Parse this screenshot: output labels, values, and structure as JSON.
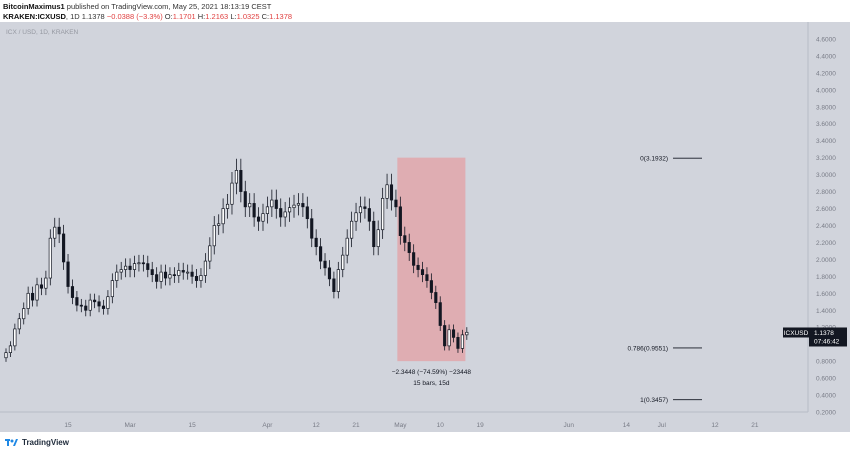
{
  "header": {
    "author": "BitcoinMaximus1",
    "published_text": "published on TradingView.com, May 25, 2021 18:13:19 CEST",
    "symbol": "KRAKEN:ICXUSD",
    "interval": "1D",
    "last": "1.1378",
    "change": "−0.0388 (−3.3%)",
    "o_label": "O:",
    "o_value": "1.1701",
    "h_label": "H:",
    "h_value": "1.2163",
    "l_label": "L:",
    "l_value": "1.0325",
    "c_label": "C:",
    "c_value": "1.1378"
  },
  "footer": {
    "brand": "TradingView"
  },
  "colors": {
    "background": "#d1d4dc",
    "candle_up": "#ffffff",
    "candle_down": "#131722",
    "range_box": "#e3a1a7",
    "price_label_bg": "#131722"
  },
  "chart_data": {
    "type": "candlestick",
    "title": "ICX / USD, 1D, KRAKEN",
    "ylim": [
      0.2,
      4.8
    ],
    "y_ticks": [
      "0.2000",
      "0.4000",
      "0.6000",
      "0.8000",
      "1.0000",
      "1.2000",
      "1.4000",
      "1.6000",
      "1.8000",
      "2.0000",
      "2.2000",
      "2.4000",
      "2.6000",
      "2.8000",
      "3.0000",
      "3.2000",
      "3.4000",
      "3.6000",
      "3.8000",
      "4.0000",
      "4.2000",
      "4.4000",
      "4.6000"
    ],
    "x_ticks": [
      "15",
      "Mar",
      "15",
      "Apr",
      "12",
      "21",
      "May",
      "10",
      "19",
      "Jun",
      "14",
      "Jul",
      "12",
      "21"
    ],
    "x_tick_days": [
      14,
      28,
      42,
      59,
      70,
      79,
      89,
      98,
      107,
      127,
      140,
      148,
      160,
      169
    ],
    "x_range_days": [
      0,
      181
    ],
    "closes": [
      0.9,
      0.98,
      1.18,
      1.3,
      1.42,
      1.6,
      1.52,
      1.7,
      1.66,
      1.78,
      2.25,
      2.38,
      2.3,
      1.97,
      1.68,
      1.55,
      1.46,
      1.45,
      1.4,
      1.52,
      1.5,
      1.45,
      1.42,
      1.56,
      1.75,
      1.85,
      1.88,
      1.92,
      1.88,
      1.95,
      1.96,
      1.95,
      1.88,
      1.82,
      1.74,
      1.85,
      1.78,
      1.82,
      1.81,
      1.87,
      1.85,
      1.85,
      1.8,
      1.75,
      1.81,
      1.98,
      2.16,
      2.4,
      2.42,
      2.6,
      2.65,
      2.9,
      3.05,
      2.8,
      2.62,
      2.66,
      2.5,
      2.45,
      2.54,
      2.62,
      2.7,
      2.6,
      2.5,
      2.56,
      2.61,
      2.64,
      2.66,
      2.62,
      2.48,
      2.25,
      2.15,
      1.98,
      1.9,
      1.77,
      1.62,
      1.88,
      2.05,
      2.25,
      2.45,
      2.55,
      2.62,
      2.6,
      2.45,
      2.15,
      2.35,
      2.72,
      2.88,
      2.7,
      2.62,
      2.28,
      2.2,
      2.08,
      1.93,
      1.88,
      1.82,
      1.75,
      1.61,
      1.49,
      1.22,
      0.98,
      1.17,
      1.08,
      0.95,
      1.11,
      1.14
    ],
    "last_price": "1.1378",
    "countdown": "07:46:42",
    "symbol_label": "ICXUSD",
    "fib_levels": [
      {
        "label": "0(3.1932)",
        "value": 3.1932
      },
      {
        "label": "0.786(0.9551)",
        "value": 0.9551
      },
      {
        "label": "1(0.3457)",
        "value": 0.3457
      }
    ],
    "range_measure": {
      "start_day": 89,
      "end_day": 103,
      "top": 3.2,
      "bottom": 0.8,
      "text1": "−2.3448 (−74.59%) −23448",
      "text2": "15 bars, 15d"
    }
  }
}
